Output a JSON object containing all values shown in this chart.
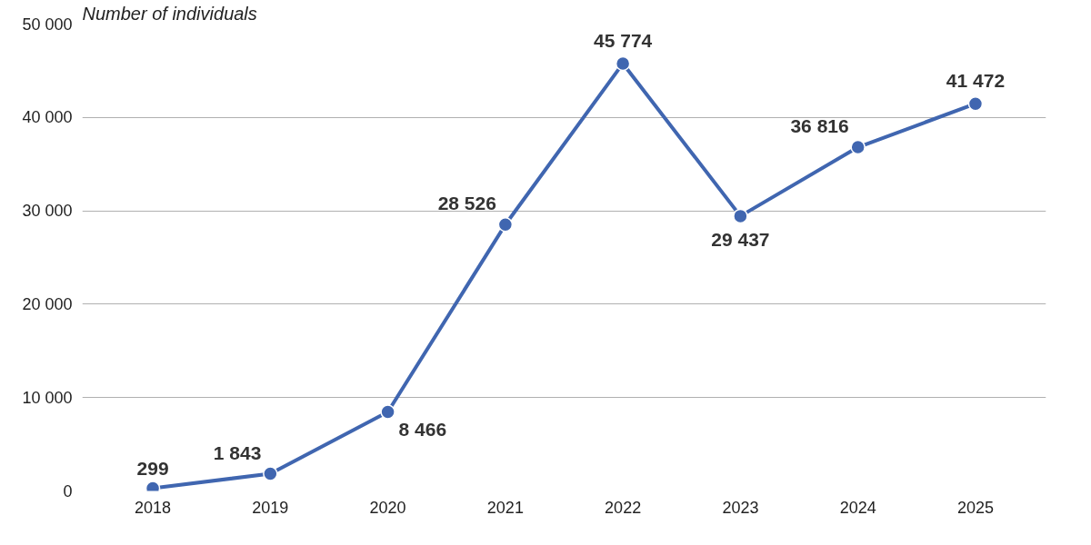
{
  "chart_data": {
    "type": "line",
    "ylabel": "Number of individuals",
    "categories": [
      "2018",
      "2019",
      "2020",
      "2021",
      "2022",
      "2023",
      "2024",
      "2025"
    ],
    "series": [
      {
        "color": "#4066b0",
        "values": [
          299,
          1843,
          8466,
          28526,
          45774,
          29437,
          36816,
          41472
        ],
        "value_labels": [
          "299",
          "1 843",
          "8 466",
          "28 526",
          "45 774",
          "29 437",
          "36 816",
          "41 472"
        ]
      }
    ],
    "ylim": [
      0,
      50000
    ],
    "yticks": [
      {
        "value": 0,
        "label": "0"
      },
      {
        "value": 10000,
        "label": "10 000"
      },
      {
        "value": 20000,
        "label": "20 000"
      },
      {
        "value": 30000,
        "label": "30 000"
      },
      {
        "value": 40000,
        "label": "40 000"
      },
      {
        "value": 50000,
        "label": "50 000"
      }
    ],
    "grid": "y",
    "marker": "circle",
    "line_style": "solid"
  }
}
